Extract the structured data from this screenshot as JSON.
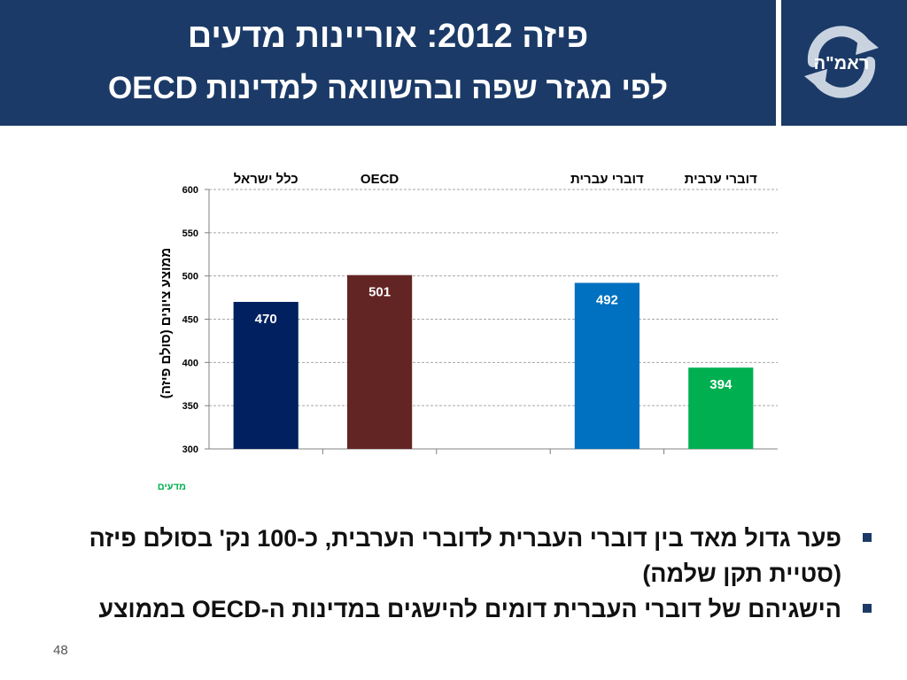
{
  "slide": {
    "title_line1": "פיזה 2012: אוריינות מדעים",
    "title_line2": "לפי מגזר שפה ובהשוואה למדינות OECD",
    "logo_text": "ראמ\"ה",
    "page_number": "48",
    "colors": {
      "header": "#1b3a67",
      "accent": "#1b3a67"
    }
  },
  "chart_data": {
    "type": "bar",
    "categories": [
      "כלל ישראל",
      "OECD",
      "",
      "דוברי עברית",
      "דוברי ערבית"
    ],
    "values": [
      470,
      501,
      null,
      492,
      394
    ],
    "bar_colors": [
      "#002060",
      "#632523",
      "",
      "#0070c0",
      "#00b050"
    ],
    "ylabel": "ממוצע ציונים (סולם פיזה)",
    "ylim": [
      300,
      600
    ],
    "yticks": [
      300,
      350,
      400,
      450,
      500,
      550,
      600
    ],
    "category_labels_position": "top",
    "grid": true,
    "footnote": "מדעים"
  },
  "bullets": [
    "פער גדול מאד בין דוברי העברית לדוברי הערבית, כ-100 נק' בסולם פיזה (סטיית תקן שלמה)",
    "הישגיהם של דוברי העברית דומים להישגים במדינות ה-OECD בממוצע"
  ]
}
